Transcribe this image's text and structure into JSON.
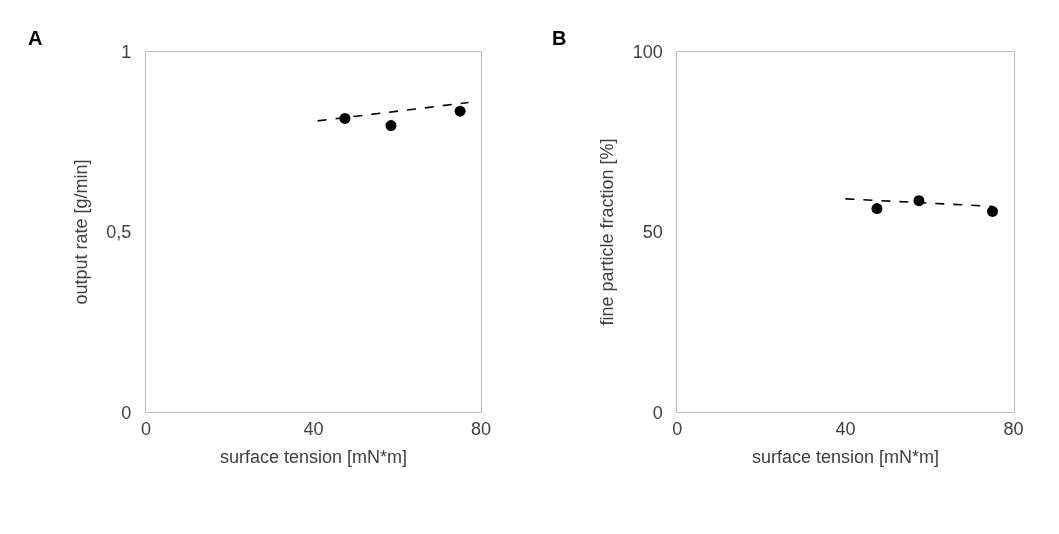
{
  "chart_data": [
    {
      "type": "scatter",
      "title": "A",
      "xlabel": "surface tension [mN*m]",
      "ylabel": "output rate [g/min]",
      "xlim": [
        0,
        80
      ],
      "xticks": [
        0,
        40,
        80
      ],
      "ylim": [
        0,
        1
      ],
      "yticks": [
        0,
        {
          "value": 0.5,
          "label": "0,5"
        },
        1
      ],
      "series": [
        {
          "color": "#000000",
          "marker": "circle",
          "x": [
            47.5,
            58.5,
            75
          ],
          "values": [
            0.815,
            0.795,
            0.835
          ]
        },
        {
          "type": "line",
          "color": "#000000",
          "line_style": "dashed",
          "marker": "none",
          "x": [
            41,
            77
          ],
          "values": [
            0.808,
            0.859
          ]
        }
      ]
    },
    {
      "type": "scatter",
      "title": "B",
      "xlabel": "surface tension [mN*m]",
      "ylabel": "fine particle fraction [%]",
      "xlim": [
        0,
        80
      ],
      "xticks": [
        0,
        40,
        80
      ],
      "ylim": [
        0,
        100
      ],
      "yticks": [
        0,
        50,
        100
      ],
      "series": [
        {
          "color": "#000000",
          "marker": "circle",
          "x": [
            47.5,
            57.5,
            75
          ],
          "values": [
            56.5,
            58.7,
            55.7
          ]
        },
        {
          "type": "line",
          "color": "#000000",
          "line_style": "dashed",
          "marker": "none",
          "x": [
            40,
            75.3
          ],
          "values": [
            59.2,
            57.1
          ]
        }
      ]
    }
  ]
}
